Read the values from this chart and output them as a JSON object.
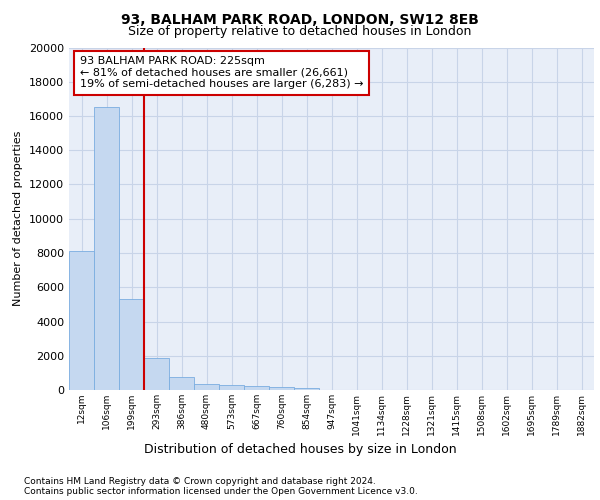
{
  "title1": "93, BALHAM PARK ROAD, LONDON, SW12 8EB",
  "title2": "Size of property relative to detached houses in London",
  "xlabel": "Distribution of detached houses by size in London",
  "ylabel": "Number of detached properties",
  "categories": [
    "12sqm",
    "106sqm",
    "199sqm",
    "293sqm",
    "386sqm",
    "480sqm",
    "573sqm",
    "667sqm",
    "760sqm",
    "854sqm",
    "947sqm",
    "1041sqm",
    "1134sqm",
    "1228sqm",
    "1321sqm",
    "1415sqm",
    "1508sqm",
    "1602sqm",
    "1695sqm",
    "1789sqm",
    "1882sqm"
  ],
  "values": [
    8100,
    16500,
    5300,
    1850,
    750,
    350,
    280,
    210,
    160,
    120,
    0,
    0,
    0,
    0,
    0,
    0,
    0,
    0,
    0,
    0,
    0
  ],
  "bar_color": "#c5d8f0",
  "bar_edge_color": "#7aade0",
  "grid_color": "#c8d4e8",
  "annotation_box_color": "#cc0000",
  "property_line_color": "#cc0000",
  "property_line_x": 2.5,
  "annotation_text": "93 BALHAM PARK ROAD: 225sqm\n← 81% of detached houses are smaller (26,661)\n19% of semi-detached houses are larger (6,283) →",
  "ylim": [
    0,
    20000
  ],
  "yticks": [
    0,
    2000,
    4000,
    6000,
    8000,
    10000,
    12000,
    14000,
    16000,
    18000,
    20000
  ],
  "footnote1": "Contains HM Land Registry data © Crown copyright and database right 2024.",
  "footnote2": "Contains public sector information licensed under the Open Government Licence v3.0.",
  "bg_color": "#e8eef8"
}
